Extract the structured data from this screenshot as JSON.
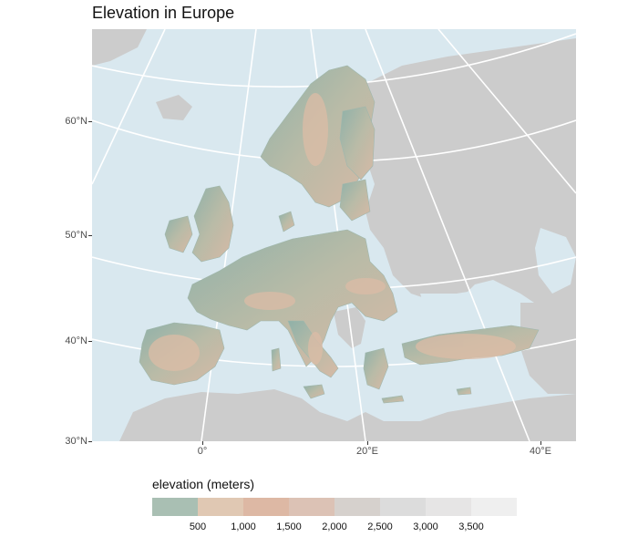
{
  "title": "Elevation in Europe",
  "axes": {
    "y_labels": [
      "60°N",
      "50°N",
      "40°N",
      "30°N"
    ],
    "x_labels": [
      "0°",
      "20°E",
      "40°E"
    ]
  },
  "legend": {
    "title": "elevation (meters)",
    "labels": [
      "500",
      "1,000",
      "1,500",
      "2,000",
      "2,500",
      "3,000",
      "3,500"
    ],
    "colors": [
      "#a9bfb3",
      "#e0c8b3",
      "#ddb8a4",
      "#dcc2b5",
      "#d6d1cd",
      "#dcdcdc",
      "#e6e5e5",
      "#efefef"
    ]
  },
  "colors": {
    "sea": "#d9e8ef",
    "non_eu_land": "#cccccc",
    "lowland": "#86aba3",
    "highland": "#dcbca6",
    "graticule": "#ffffff"
  }
}
